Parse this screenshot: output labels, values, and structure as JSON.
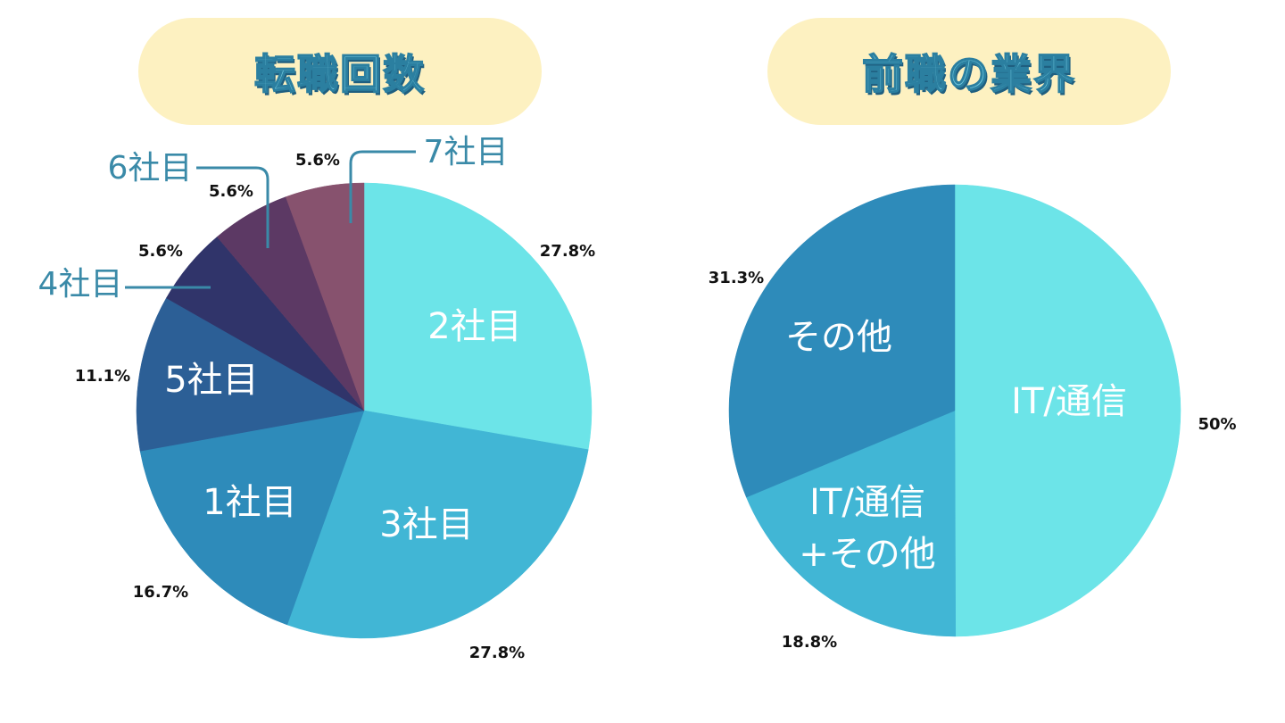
{
  "titles": {
    "left": "転職回数",
    "right": "前職の業界"
  },
  "chart_data": [
    {
      "type": "pie",
      "title": "転職回数",
      "slices": [
        {
          "label": "2社目",
          "value": 27.8,
          "pct": "27.8%",
          "color": "#6ce4e8",
          "inside": true
        },
        {
          "label": "3社目",
          "value": 27.8,
          "pct": "27.8%",
          "color": "#41b6d5",
          "inside": true
        },
        {
          "label": "1社目",
          "value": 16.7,
          "pct": "16.7%",
          "color": "#2e8bba",
          "inside": true
        },
        {
          "label": "5社目",
          "value": 11.1,
          "pct": "11.1%",
          "color": "#2c5f96",
          "inside": true
        },
        {
          "label": "4社目",
          "value": 5.6,
          "pct": "5.6%",
          "color": "#30346a",
          "inside": false
        },
        {
          "label": "6社目",
          "value": 5.6,
          "pct": "5.6%",
          "color": "#5c3964",
          "inside": false
        },
        {
          "label": "7社目",
          "value": 5.6,
          "pct": "5.6%",
          "color": "#87526e",
          "inside": false
        }
      ]
    },
    {
      "type": "pie",
      "title": "前職の業界",
      "slices": [
        {
          "label": "IT/通信",
          "value": 50,
          "pct": "50%",
          "color": "#6ce4e8",
          "inside": true
        },
        {
          "label": "IT/通信\n+その他",
          "value": 18.8,
          "pct": "18.8%",
          "color": "#41b6d5",
          "inside": true
        },
        {
          "label": "その他",
          "value": 31.3,
          "pct": "31.3%",
          "color": "#2e8bba",
          "inside": true
        }
      ]
    }
  ],
  "colors": {
    "title_background": "#fdf1c1",
    "title_text": "#6fc6dc",
    "callout": "#3a8aa8"
  }
}
